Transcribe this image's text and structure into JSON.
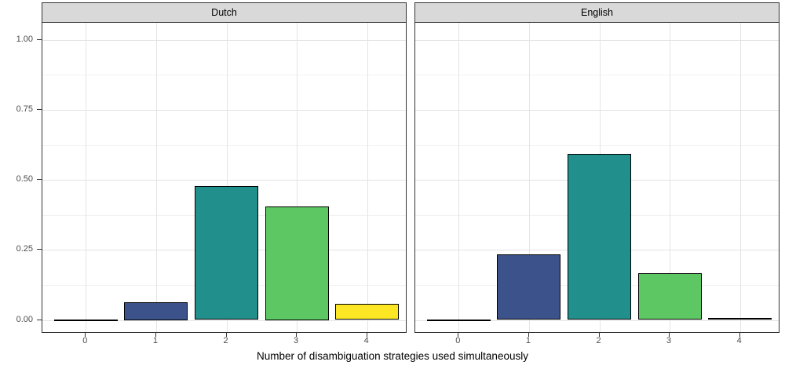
{
  "chart_data": {
    "type": "bar",
    "title": "",
    "xlabel": "Number of disambiguation strategies used simultaneously",
    "ylabel": "",
    "categories": [
      "0",
      "1",
      "2",
      "3",
      "4"
    ],
    "facets": [
      {
        "label": "Dutch",
        "values": [
          0.002,
          0.063,
          0.478,
          0.405,
          0.057
        ]
      },
      {
        "label": "English",
        "values": [
          0.002,
          0.233,
          0.593,
          0.168,
          0.008
        ]
      }
    ],
    "ylim": [
      -0.05,
      1.06
    ],
    "y_major_ticks": [
      {
        "label": "0.00",
        "value": 0.0
      },
      {
        "label": "0.25",
        "value": 0.25
      },
      {
        "label": "0.50",
        "value": 0.5
      },
      {
        "label": "0.75",
        "value": 0.75
      },
      {
        "label": "1.00",
        "value": 1.0
      }
    ],
    "y_minor_gridlines": [
      0.125,
      0.375,
      0.625,
      0.875
    ],
    "grid": "on",
    "legend_position": "none",
    "bar_colors": [
      "#440154",
      "#3B528B",
      "#21908C",
      "#5DC863",
      "#FDE725"
    ]
  },
  "style": {
    "strip_fill": "#D9D9D9",
    "panel_border": "#333333",
    "grid_major": "#E4E4E4",
    "grid_minor": "#F2F2F2",
    "axis_text_color": "#4D4D4D",
    "bar_outline": "#000000",
    "background": "#FFFFFF"
  }
}
